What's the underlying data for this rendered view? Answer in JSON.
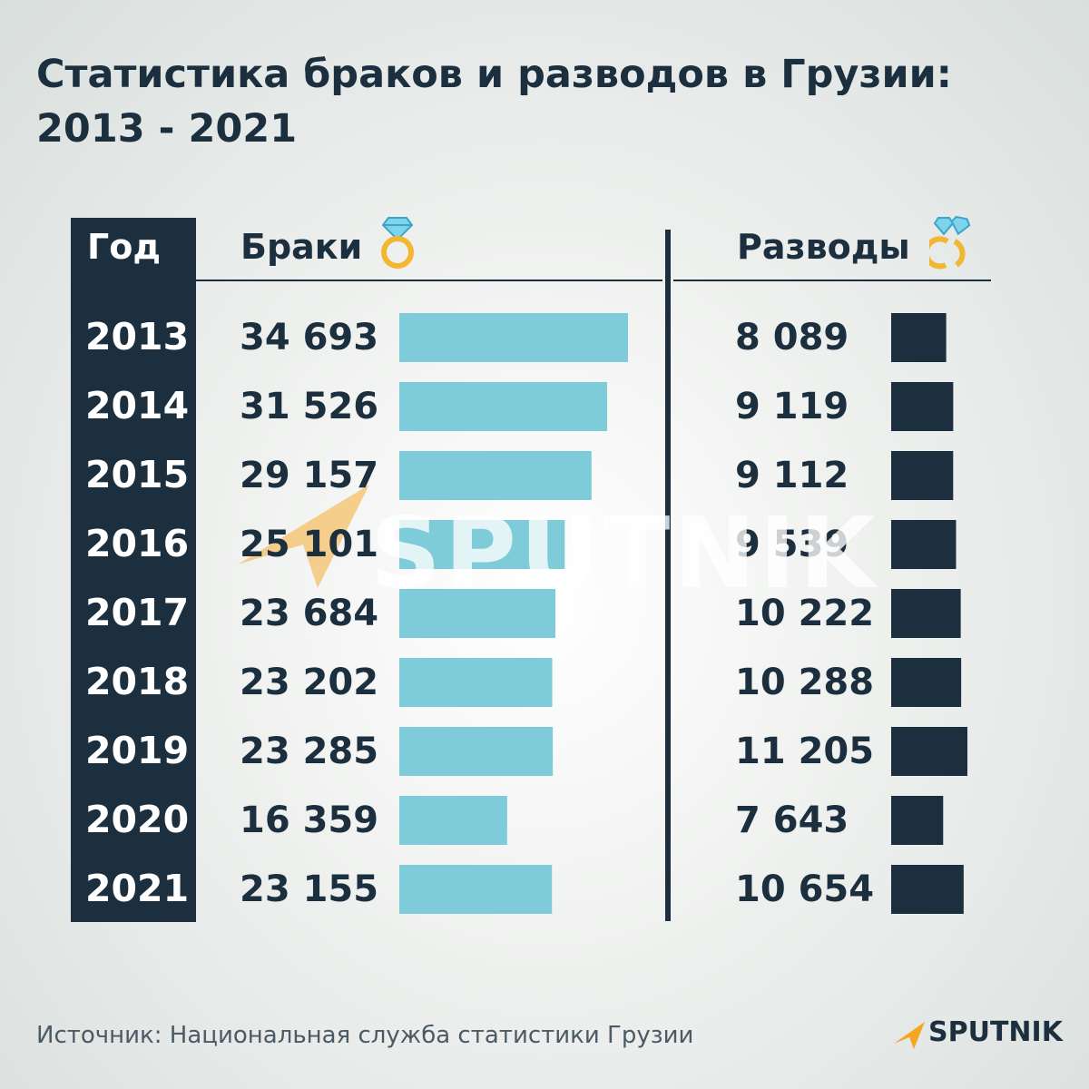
{
  "title_line1": "Статистика браков и разводов в Грузии:",
  "title_line2": "2013 - 2021",
  "headers": {
    "year": "Год",
    "marriages": "Браки",
    "divorces": "Разводы"
  },
  "watermark": "SPUTNIK",
  "source": "Источник: Национальная служба статистики Грузии",
  "logo": "SPUTNIK",
  "colors": {
    "marriage_bar": "#7ecbd9",
    "divorce_bar": "#1b2f3e",
    "accent": "#f5a623"
  },
  "chart_data": {
    "type": "bar",
    "categories": [
      "2013",
      "2014",
      "2015",
      "2016",
      "2017",
      "2018",
      "2019",
      "2020",
      "2021"
    ],
    "series": [
      {
        "name": "Браки",
        "values": [
          34693,
          31526,
          29157,
          25101,
          23684,
          23202,
          23285,
          16359,
          23155
        ],
        "labels": [
          "34 693",
          "31 526",
          "29 157",
          "25 101",
          "23 684",
          "23 202",
          "23 285",
          "16 359",
          "23 155"
        ]
      },
      {
        "name": "Разводы",
        "values": [
          8089,
          9119,
          9112,
          9539,
          10222,
          10288,
          11205,
          7643,
          10654
        ],
        "labels": [
          "8 089",
          "9 119",
          "9 112",
          "9 539",
          "10 222",
          "10 288",
          "11 205",
          "7 643",
          "10 654"
        ]
      }
    ]
  }
}
